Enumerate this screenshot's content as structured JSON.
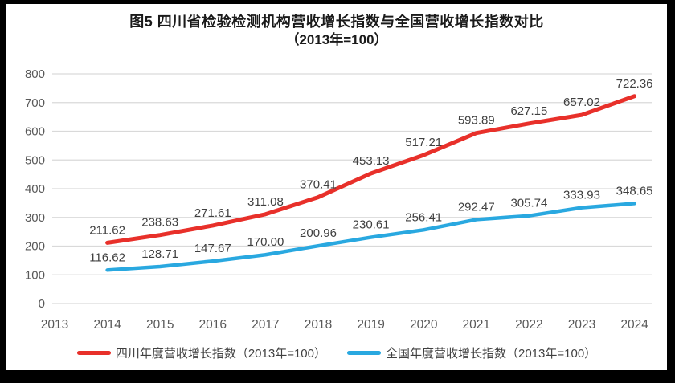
{
  "title": {
    "line1": "图5  四川省检验检测机构营收增长指数与全国营收增长指数对比",
    "line2": "（2013年=100）"
  },
  "chart_data": {
    "type": "line",
    "title": "图5 四川省检验检测机构营收增长指数与全国营收增长指数对比（2013年=100）",
    "categories": [
      "2013",
      "2014",
      "2015",
      "2016",
      "2017",
      "2018",
      "2019",
      "2020",
      "2021",
      "2022",
      "2023",
      "2024"
    ],
    "y_ticks": [
      0,
      100,
      200,
      300,
      400,
      500,
      600,
      700,
      800
    ],
    "ylim": [
      0,
      800
    ],
    "grid": "horizontal",
    "legend_position": "bottom",
    "series": [
      {
        "id": "sichuan",
        "name": "四川年度营收增长指数（2013年=100）",
        "color": "#e8302a",
        "start_category_index": 1,
        "values": [
          211.62,
          238.63,
          271.61,
          311.08,
          370.41,
          453.13,
          517.21,
          593.89,
          627.15,
          657.02,
          722.36
        ]
      },
      {
        "id": "national",
        "name": "全国年度营收增长指数（2013年=100）",
        "color": "#29a8e0",
        "start_category_index": 1,
        "values": [
          116.62,
          128.71,
          147.67,
          170.0,
          200.96,
          230.61,
          256.41,
          292.47,
          305.74,
          333.93,
          348.65
        ]
      }
    ]
  },
  "legend": {
    "items": [
      {
        "label": "四川年度营收增长指数（2013年=100）",
        "color": "#e8302a"
      },
      {
        "label": "全国年度营收增长指数（2013年=100）",
        "color": "#29a8e0"
      }
    ]
  },
  "colors": {
    "frame": "#000000",
    "background": "#ffffff",
    "gridline": "#d9d9d9",
    "axis_text": "#595959",
    "data_label": "#404040",
    "title_text": "#1a1a1a"
  }
}
